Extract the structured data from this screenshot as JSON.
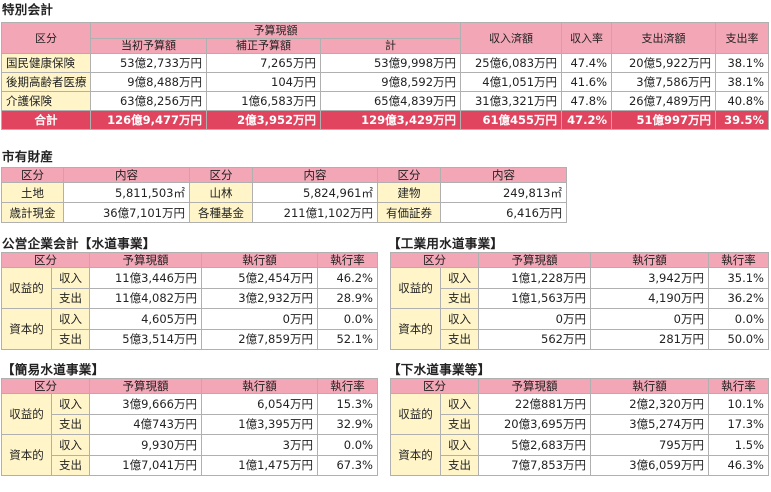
{
  "special": {
    "title": "特別会計",
    "headers": {
      "category": "区分",
      "budget_group": "予算現額",
      "initial": "当初予算額",
      "supplementary": "補正予算額",
      "total": "計",
      "revenue_done": "収入済額",
      "revenue_rate": "収入率",
      "expense_done": "支出済額",
      "expense_rate": "支出率"
    },
    "rows": [
      {
        "name": "国民健康保険",
        "initial": "53億2,733万円",
        "supplementary": "7,265万円",
        "total": "53億9,998万円",
        "revenue_done": "25億6,083万円",
        "revenue_rate": "47.4%",
        "expense_done": "20億5,922万円",
        "expense_rate": "38.1%"
      },
      {
        "name": "後期高齢者医療",
        "initial": "9億8,488万円",
        "supplementary": "104万円",
        "total": "9億8,592万円",
        "revenue_done": "4億1,051万円",
        "revenue_rate": "41.6%",
        "expense_done": "3億7,586万円",
        "expense_rate": "38.1%"
      },
      {
        "name": "介護保険",
        "initial": "63億8,256万円",
        "supplementary": "1億6,583万円",
        "total": "65億4,839万円",
        "revenue_done": "31億3,321万円",
        "revenue_rate": "47.8%",
        "expense_done": "26億7,489万円",
        "expense_rate": "40.8%"
      }
    ],
    "total_row": {
      "name": "合計",
      "initial": "126億9,477万円",
      "supplementary": "2億3,952万円",
      "total": "129億3,429万円",
      "revenue_done": "61億455万円",
      "revenue_rate": "47.2%",
      "expense_done": "51億997万円",
      "expense_rate": "39.5%"
    }
  },
  "property": {
    "title": "市有財産",
    "headers": {
      "category": "区分",
      "content": "内容"
    },
    "rows": [
      [
        {
          "label": "土地",
          "value": "5,811,503㎡"
        },
        {
          "label": "山林",
          "value": "5,824,961㎡"
        },
        {
          "label": "建物",
          "value": "249,813㎡"
        }
      ],
      [
        {
          "label": "歳計現金",
          "value": "36億7,101万円"
        },
        {
          "label": "各種基金",
          "value": "211億1,102万円"
        },
        {
          "label": "有価証券",
          "value": "6,416万円"
        }
      ]
    ]
  },
  "enterprises": [
    {
      "title": "公営企業会計【水道事業】",
      "headers": {
        "category": "区分",
        "budget": "予算現額",
        "executed": "執行額",
        "rate": "執行率"
      },
      "groups": [
        {
          "name": "収益的",
          "rows": [
            {
              "type": "収入",
              "budget": "11億3,446万円",
              "executed": "5億2,454万円",
              "rate": "46.2%"
            },
            {
              "type": "支出",
              "budget": "11億4,082万円",
              "executed": "3億2,932万円",
              "rate": "28.9%"
            }
          ]
        },
        {
          "name": "資本的",
          "rows": [
            {
              "type": "収入",
              "budget": "4,605万円",
              "executed": "0万円",
              "rate": "0.0%"
            },
            {
              "type": "支出",
              "budget": "5億3,514万円",
              "executed": "2億7,859万円",
              "rate": "52.1%"
            }
          ]
        }
      ]
    },
    {
      "title": "【工業用水道事業】",
      "headers": {
        "category": "区分",
        "budget": "予算現額",
        "executed": "執行額",
        "rate": "執行率"
      },
      "groups": [
        {
          "name": "収益的",
          "rows": [
            {
              "type": "収入",
              "budget": "1億1,228万円",
              "executed": "3,942万円",
              "rate": "35.1%"
            },
            {
              "type": "支出",
              "budget": "1億1,563万円",
              "executed": "4,190万円",
              "rate": "36.2%"
            }
          ]
        },
        {
          "name": "資本的",
          "rows": [
            {
              "type": "収入",
              "budget": "0万円",
              "executed": "0万円",
              "rate": "0.0%"
            },
            {
              "type": "支出",
              "budget": "562万円",
              "executed": "281万円",
              "rate": "50.0%"
            }
          ]
        }
      ]
    },
    {
      "title": "【簡易水道事業】",
      "headers": {
        "category": "区分",
        "budget": "予算現額",
        "executed": "執行額",
        "rate": "執行率"
      },
      "groups": [
        {
          "name": "収益的",
          "rows": [
            {
              "type": "収入",
              "budget": "3億9,666万円",
              "executed": "6,054万円",
              "rate": "15.3%"
            },
            {
              "type": "支出",
              "budget": "4億743万円",
              "executed": "1億3,395万円",
              "rate": "32.9%"
            }
          ]
        },
        {
          "name": "資本的",
          "rows": [
            {
              "type": "収入",
              "budget": "9,930万円",
              "executed": "3万円",
              "rate": "0.0%"
            },
            {
              "type": "支出",
              "budget": "1億7,041万円",
              "executed": "1億1,475万円",
              "rate": "67.3%"
            }
          ]
        }
      ]
    },
    {
      "title": "【下水道事業等】",
      "headers": {
        "category": "区分",
        "budget": "予算現額",
        "executed": "執行額",
        "rate": "執行率"
      },
      "groups": [
        {
          "name": "収益的",
          "rows": [
            {
              "type": "収入",
              "budget": "22億881万円",
              "executed": "2億2,320万円",
              "rate": "10.1%"
            },
            {
              "type": "支出",
              "budget": "20億3,695万円",
              "executed": "3億5,274万円",
              "rate": "17.3%"
            }
          ]
        },
        {
          "name": "資本的",
          "rows": [
            {
              "type": "収入",
              "budget": "5億2,683万円",
              "executed": "795万円",
              "rate": "1.5%"
            },
            {
              "type": "支出",
              "budget": "7億7,853万円",
              "executed": "3億6,059万円",
              "rate": "46.3%"
            }
          ]
        }
      ]
    }
  ]
}
